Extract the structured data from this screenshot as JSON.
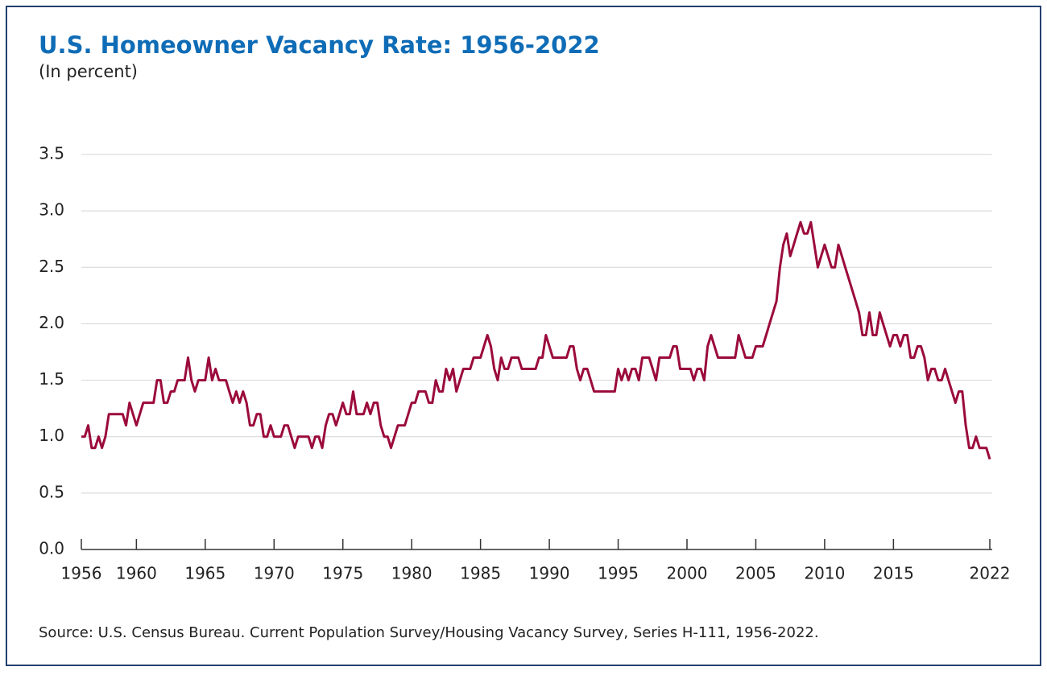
{
  "chart_data": {
    "type": "line",
    "title": "U.S. Homeowner Vacancy Rate: 1956-2022",
    "subtitle": "(In percent)",
    "source": "Source: U.S. Census Bureau. Current Population Survey/Housing Vacancy Survey, Series H-111, 1956-2022.",
    "xlim": [
      1956,
      2022
    ],
    "xticks": [
      1956,
      1960,
      1965,
      1970,
      1975,
      1980,
      1985,
      1990,
      1995,
      2000,
      2005,
      2010,
      2015,
      2022
    ],
    "ylim": [
      0,
      3.5
    ],
    "yticks": [
      {
        "value": 0,
        "label": "0.0"
      },
      0.5,
      {
        "value": 1,
        "label": "1.0"
      },
      1.5,
      {
        "value": 2,
        "label": "2.0"
      },
      2.5,
      {
        "value": 3,
        "label": "3.0"
      },
      3.5
    ],
    "grid": true,
    "series": [
      {
        "color": "#9b0a3c",
        "x": [
          1956,
          1956.25,
          1956.5,
          1956.75,
          1957,
          1957.25,
          1957.5,
          1957.75,
          1958,
          1958.25,
          1958.5,
          1958.75,
          1959,
          1959.25,
          1959.5,
          1959.75,
          1960,
          1960.25,
          1960.5,
          1960.75,
          1961,
          1961.25,
          1961.5,
          1961.75,
          1962,
          1962.25,
          1962.5,
          1962.75,
          1963,
          1963.25,
          1963.5,
          1963.75,
          1964,
          1964.25,
          1964.5,
          1964.75,
          1965,
          1965.25,
          1965.5,
          1965.75,
          1966,
          1966.25,
          1966.5,
          1966.75,
          1967,
          1967.25,
          1967.5,
          1967.75,
          1968,
          1968.25,
          1968.5,
          1968.75,
          1969,
          1969.25,
          1969.5,
          1969.75,
          1970,
          1970.25,
          1970.5,
          1970.75,
          1971,
          1971.25,
          1971.5,
          1971.75,
          1972,
          1972.25,
          1972.5,
          1972.75,
          1973,
          1973.25,
          1973.5,
          1973.75,
          1974,
          1974.25,
          1974.5,
          1974.75,
          1975,
          1975.25,
          1975.5,
          1975.75,
          1976,
          1976.25,
          1976.5,
          1976.75,
          1977,
          1977.25,
          1977.5,
          1977.75,
          1978,
          1978.25,
          1978.5,
          1978.75,
          1979,
          1979.25,
          1979.5,
          1979.75,
          1980,
          1980.25,
          1980.5,
          1980.75,
          1981,
          1981.25,
          1981.5,
          1981.75,
          1982,
          1982.25,
          1982.5,
          1982.75,
          1983,
          1983.25,
          1983.5,
          1983.75,
          1984,
          1984.25,
          1984.5,
          1984.75,
          1985,
          1985.25,
          1985.5,
          1985.75,
          1986,
          1986.25,
          1986.5,
          1986.75,
          1987,
          1987.25,
          1987.5,
          1987.75,
          1988,
          1988.25,
          1988.5,
          1988.75,
          1989,
          1989.25,
          1989.5,
          1989.75,
          1990,
          1990.25,
          1990.5,
          1990.75,
          1991,
          1991.25,
          1991.5,
          1991.75,
          1992,
          1992.25,
          1992.5,
          1992.75,
          1993,
          1993.25,
          1993.5,
          1993.75,
          1994,
          1994.25,
          1994.5,
          1994.75,
          1995,
          1995.25,
          1995.5,
          1995.75,
          1996,
          1996.25,
          1996.5,
          1996.75,
          1997,
          1997.25,
          1997.5,
          1997.75,
          1998,
          1998.25,
          1998.5,
          1998.75,
          1999,
          1999.25,
          1999.5,
          1999.75,
          2000,
          2000.25,
          2000.5,
          2000.75,
          2001,
          2001.25,
          2001.5,
          2001.75,
          2002,
          2002.25,
          2002.5,
          2002.75,
          2003,
          2003.25,
          2003.5,
          2003.75,
          2004,
          2004.25,
          2004.5,
          2004.75,
          2005,
          2005.25,
          2005.5,
          2005.75,
          2006,
          2006.25,
          2006.5,
          2006.75,
          2007,
          2007.25,
          2007.5,
          2007.75,
          2008,
          2008.25,
          2008.5,
          2008.75,
          2009,
          2009.25,
          2009.5,
          2009.75,
          2010,
          2010.25,
          2010.5,
          2010.75,
          2011,
          2011.25,
          2011.5,
          2011.75,
          2012,
          2012.25,
          2012.5,
          2012.75,
          2013,
          2013.25,
          2013.5,
          2013.75,
          2014,
          2014.25,
          2014.5,
          2014.75,
          2015,
          2015.25,
          2015.5,
          2015.75,
          2016,
          2016.25,
          2016.5,
          2016.75,
          2017,
          2017.25,
          2017.5,
          2017.75,
          2018,
          2018.25,
          2018.5,
          2018.75,
          2019,
          2019.25,
          2019.5,
          2019.75,
          2020,
          2020.25,
          2020.5,
          2020.75,
          2021,
          2021.25,
          2021.5,
          2021.75,
          2022
        ],
        "values": [
          1.0,
          1.0,
          1.1,
          0.9,
          0.9,
          1.0,
          0.9,
          1.0,
          1.2,
          1.2,
          1.2,
          1.2,
          1.2,
          1.1,
          1.3,
          1.2,
          1.1,
          1.2,
          1.3,
          1.3,
          1.3,
          1.3,
          1.5,
          1.5,
          1.3,
          1.3,
          1.4,
          1.4,
          1.5,
          1.5,
          1.5,
          1.7,
          1.5,
          1.4,
          1.5,
          1.5,
          1.5,
          1.7,
          1.5,
          1.6,
          1.5,
          1.5,
          1.5,
          1.4,
          1.3,
          1.4,
          1.3,
          1.4,
          1.3,
          1.1,
          1.1,
          1.2,
          1.2,
          1.0,
          1.0,
          1.1,
          1.0,
          1.0,
          1.0,
          1.1,
          1.1,
          1.0,
          0.9,
          1.0,
          1.0,
          1.0,
          1.0,
          0.9,
          1.0,
          1.0,
          0.9,
          1.1,
          1.2,
          1.2,
          1.1,
          1.2,
          1.3,
          1.2,
          1.2,
          1.4,
          1.2,
          1.2,
          1.2,
          1.3,
          1.2,
          1.3,
          1.3,
          1.1,
          1.0,
          1.0,
          0.9,
          1.0,
          1.1,
          1.1,
          1.1,
          1.2,
          1.3,
          1.3,
          1.4,
          1.4,
          1.4,
          1.3,
          1.3,
          1.5,
          1.4,
          1.4,
          1.6,
          1.5,
          1.6,
          1.4,
          1.5,
          1.6,
          1.6,
          1.6,
          1.7,
          1.7,
          1.7,
          1.8,
          1.9,
          1.8,
          1.6,
          1.5,
          1.7,
          1.6,
          1.6,
          1.7,
          1.7,
          1.7,
          1.6,
          1.6,
          1.6,
          1.6,
          1.6,
          1.7,
          1.7,
          1.9,
          1.8,
          1.7,
          1.7,
          1.7,
          1.7,
          1.7,
          1.8,
          1.8,
          1.6,
          1.5,
          1.6,
          1.6,
          1.5,
          1.4,
          1.4,
          1.4,
          1.4,
          1.4,
          1.4,
          1.4,
          1.6,
          1.5,
          1.6,
          1.5,
          1.6,
          1.6,
          1.5,
          1.7,
          1.7,
          1.7,
          1.6,
          1.5,
          1.7,
          1.7,
          1.7,
          1.7,
          1.8,
          1.8,
          1.6,
          1.6,
          1.6,
          1.6,
          1.5,
          1.6,
          1.6,
          1.5,
          1.8,
          1.9,
          1.8,
          1.7,
          1.7,
          1.7,
          1.7,
          1.7,
          1.7,
          1.9,
          1.8,
          1.7,
          1.7,
          1.7,
          1.8,
          1.8,
          1.8,
          1.9,
          2.0,
          2.1,
          2.2,
          2.5,
          2.7,
          2.8,
          2.6,
          2.7,
          2.8,
          2.9,
          2.8,
          2.8,
          2.9,
          2.7,
          2.5,
          2.6,
          2.7,
          2.6,
          2.5,
          2.5,
          2.7,
          2.6,
          2.5,
          2.4,
          2.3,
          2.2,
          2.1,
          1.9,
          1.9,
          2.1,
          1.9,
          1.9,
          2.1,
          2.0,
          1.9,
          1.8,
          1.9,
          1.9,
          1.8,
          1.9,
          1.9,
          1.7,
          1.7,
          1.8,
          1.8,
          1.7,
          1.5,
          1.6,
          1.6,
          1.5,
          1.5,
          1.6,
          1.5,
          1.4,
          1.3,
          1.4,
          1.4,
          1.1,
          0.9,
          0.9,
          1.0,
          0.9,
          0.9,
          0.9,
          0.8
        ]
      }
    ]
  }
}
